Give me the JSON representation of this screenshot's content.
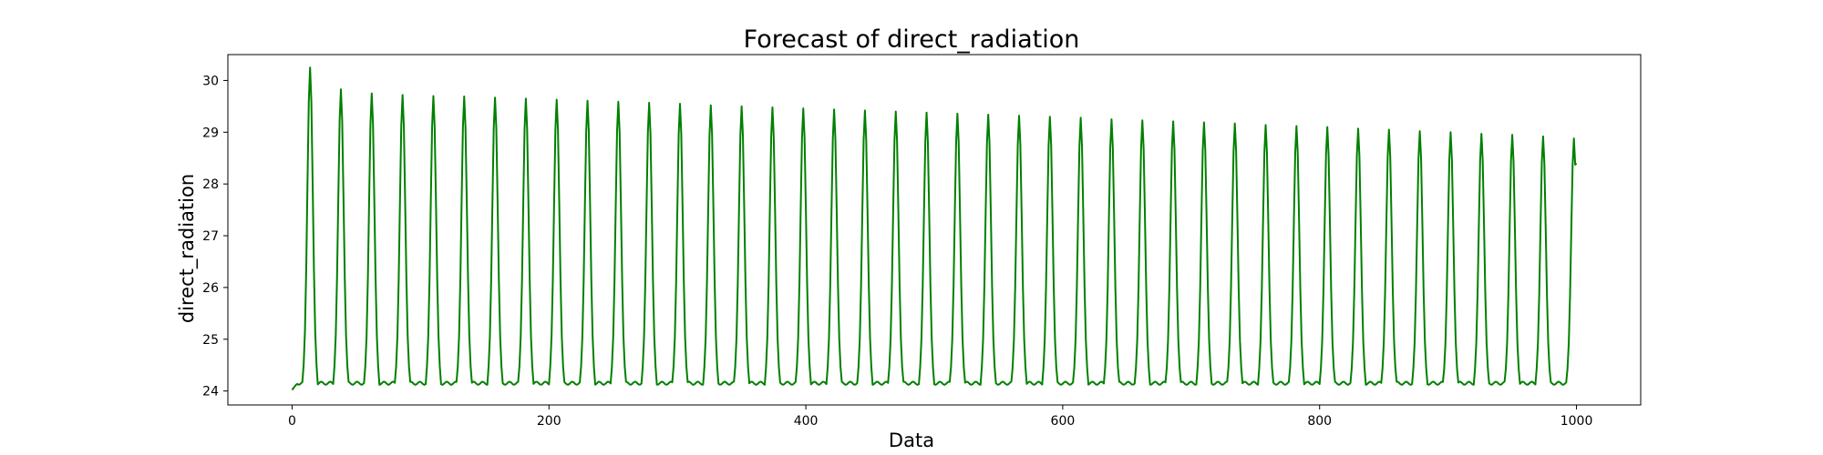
{
  "chart_data": {
    "type": "line",
    "title": "Forecast of direct_radiation",
    "xlabel": "Data",
    "ylabel": "direct_radiation",
    "xlim": [
      -50,
      1050
    ],
    "ylim": [
      23.73,
      30.5
    ],
    "x_ticks": [
      0,
      200,
      400,
      600,
      800,
      1000
    ],
    "x_tick_labels": [
      "0",
      "200",
      "400",
      "600",
      "800",
      "1000"
    ],
    "y_ticks": [
      24,
      25,
      26,
      27,
      28,
      29,
      30
    ],
    "y_tick_labels": [
      "24",
      "25",
      "26",
      "27",
      "28",
      "29",
      "30"
    ],
    "grid": false,
    "legend": "none",
    "series": [
      {
        "color": "#008000",
        "x_start": 0,
        "x_end": 1000,
        "period": 24,
        "peaks": [
          {
            "x": 14,
            "y": 30.25
          },
          {
            "x": 38,
            "y": 29.83
          },
          {
            "x": 62,
            "y": 29.75
          },
          {
            "x": 86,
            "y": 29.72
          },
          {
            "x": 110,
            "y": 29.7
          },
          {
            "x": 134,
            "y": 29.69
          },
          {
            "x": 158,
            "y": 29.67
          },
          {
            "x": 182,
            "y": 29.65
          },
          {
            "x": 206,
            "y": 29.63
          },
          {
            "x": 230,
            "y": 29.61
          },
          {
            "x": 254,
            "y": 29.59
          },
          {
            "x": 278,
            "y": 29.57
          },
          {
            "x": 302,
            "y": 29.55
          },
          {
            "x": 326,
            "y": 29.52
          },
          {
            "x": 350,
            "y": 29.5
          },
          {
            "x": 374,
            "y": 29.48
          },
          {
            "x": 398,
            "y": 29.46
          },
          {
            "x": 422,
            "y": 29.44
          },
          {
            "x": 446,
            "y": 29.42
          },
          {
            "x": 470,
            "y": 29.4
          },
          {
            "x": 494,
            "y": 29.38
          },
          {
            "x": 518,
            "y": 29.36
          },
          {
            "x": 542,
            "y": 29.34
          },
          {
            "x": 566,
            "y": 29.32
          },
          {
            "x": 590,
            "y": 29.3
          },
          {
            "x": 614,
            "y": 29.28
          },
          {
            "x": 638,
            "y": 29.25
          },
          {
            "x": 662,
            "y": 29.23
          },
          {
            "x": 686,
            "y": 29.21
          },
          {
            "x": 710,
            "y": 29.19
          },
          {
            "x": 734,
            "y": 29.17
          },
          {
            "x": 758,
            "y": 29.14
          },
          {
            "x": 782,
            "y": 29.12
          },
          {
            "x": 806,
            "y": 29.1
          },
          {
            "x": 830,
            "y": 29.07
          },
          {
            "x": 854,
            "y": 29.05
          },
          {
            "x": 878,
            "y": 29.02
          },
          {
            "x": 902,
            "y": 29.0
          },
          {
            "x": 926,
            "y": 28.97
          },
          {
            "x": 950,
            "y": 28.95
          },
          {
            "x": 974,
            "y": 28.92
          },
          {
            "x": 998,
            "y": 28.88
          }
        ],
        "baseline": 24.15,
        "start_value": 24.02,
        "end_value": 28.4
      }
    ]
  }
}
